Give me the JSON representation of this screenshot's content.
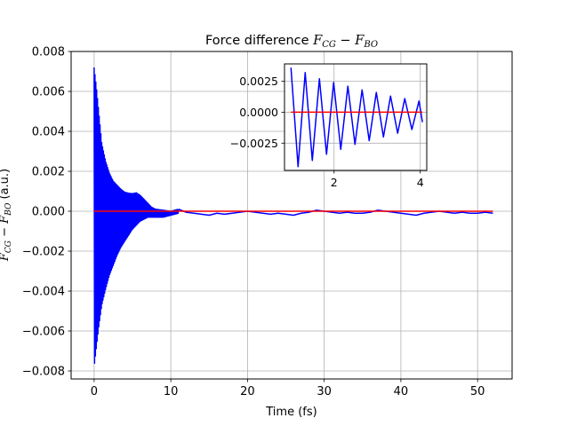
{
  "chart_data": [
    {
      "type": "line",
      "title": "Force difference",
      "title_math": {
        "left_base": "F",
        "left_sub": "CG",
        "op": "−",
        "right_base": "F",
        "right_sub": "BO"
      },
      "xlabel": "Time (fs)",
      "ylabel_math": {
        "left_base": "F",
        "left_sub": "CG",
        "op": "−",
        "right_base": "F",
        "right_sub": "BO",
        "suffix": " (a.u.)"
      },
      "xlim": [
        -3,
        54.5
      ],
      "ylim": [
        -0.0084,
        0.008
      ],
      "xticks": [
        0,
        10,
        20,
        30,
        40,
        50
      ],
      "yticks": [
        -0.008,
        -0.006,
        -0.004,
        -0.002,
        0.0,
        0.002,
        0.004,
        0.006,
        0.008
      ],
      "xtick_labels": [
        "0",
        "10",
        "20",
        "30",
        "40",
        "50"
      ],
      "ytick_labels": [
        "−0.008",
        "−0.006",
        "−0.004",
        "−0.002",
        "0.000",
        "0.002",
        "0.004",
        "0.006",
        "0.008"
      ],
      "grid": true,
      "series": [
        {
          "color": "#0000ff",
          "style": "oscillation",
          "envelope_x": [
            0.0,
            0.3,
            0.6,
            1.0,
            1.5,
            2.0,
            2.5,
            3.0,
            3.5,
            4.0,
            4.5,
            5.0,
            5.5,
            6.0,
            6.5,
            7.0,
            7.5,
            8.0,
            9.0,
            10.0,
            11.0
          ],
          "envelope_upper": [
            0.0072,
            0.0062,
            0.005,
            0.0034,
            0.0025,
            0.0019,
            0.0015,
            0.0013,
            0.0011,
            0.00095,
            0.0009,
            0.00088,
            0.00092,
            0.0008,
            0.0006,
            0.0004,
            0.0002,
            0.0001,
            5e-05,
            0.0,
            0.0001
          ],
          "envelope_lower": [
            -0.0078,
            -0.0068,
            -0.0058,
            -0.0047,
            -0.0039,
            -0.0032,
            -0.0027,
            -0.0022,
            -0.0018,
            -0.0015,
            -0.0012,
            -0.0009,
            -0.0007,
            -0.0005,
            -0.0004,
            -0.0003,
            -0.0003,
            -0.0003,
            -0.0003,
            -0.0002,
            -0.0001
          ]
        },
        {
          "color": "#0000ff",
          "style": "line",
          "x": [
            11,
            12,
            13,
            14,
            15,
            16,
            17,
            18,
            19,
            20,
            21,
            22,
            23,
            24,
            25,
            26,
            27,
            28,
            29,
            30,
            31,
            32,
            33,
            34,
            35,
            36,
            37,
            38,
            39,
            40,
            41,
            42,
            43,
            44,
            45,
            46,
            47,
            48,
            49,
            50,
            51,
            52
          ],
          "y": [
            0.0001,
            -5e-05,
            -0.0001,
            -0.00015,
            -0.0002,
            -0.0001,
            -0.00015,
            -0.0001,
            -5e-05,
            0.0,
            -5e-05,
            -0.0001,
            -0.00015,
            -0.0001,
            -0.00015,
            -0.0002,
            -0.0001,
            -5e-05,
            5e-05,
            0.0,
            -5e-05,
            -0.0001,
            -5e-05,
            -0.0001,
            -0.0001,
            -5e-05,
            5e-05,
            0.0,
            -5e-05,
            -0.0001,
            -0.00015,
            -0.0002,
            -0.0001,
            -5e-05,
            0.0,
            -5e-05,
            -0.0001,
            -5e-05,
            -0.0001,
            -0.0001,
            -5e-05,
            -0.0001
          ]
        },
        {
          "color": "#ff0000",
          "style": "line",
          "x": [
            0,
            52
          ],
          "y": [
            0.0,
            0.0
          ]
        }
      ]
    },
    {
      "type": "line",
      "role": "inset",
      "xlim": [
        0.85,
        4.15
      ],
      "ylim": [
        -0.0047,
        0.0039
      ],
      "xticks": [
        2,
        4
      ],
      "yticks": [
        -0.0025,
        0.0,
        0.0025
      ],
      "xtick_labels": [
        "2",
        "4"
      ],
      "ytick_labels": [
        "−0.0025",
        "0.0000",
        "0.0025"
      ],
      "grid": true,
      "series": [
        {
          "color": "#0000ff",
          "style": "line",
          "x": [
            1.0,
            1.165,
            1.33,
            1.495,
            1.66,
            1.825,
            1.99,
            2.155,
            2.32,
            2.485,
            2.65,
            2.815,
            2.98,
            3.145,
            3.31,
            3.475,
            3.64,
            3.805,
            3.97,
            4.05
          ],
          "y": [
            0.0036,
            -0.0044,
            0.0032,
            -0.0039,
            0.0027,
            -0.0034,
            0.0024,
            -0.003,
            0.0021,
            -0.0026,
            0.0018,
            -0.0023,
            0.0016,
            -0.002,
            0.0013,
            -0.0017,
            0.0011,
            -0.0014,
            0.0009,
            -0.0008
          ]
        },
        {
          "color": "#ff0000",
          "style": "line",
          "x": [
            1.0,
            4.05
          ],
          "y": [
            0.0,
            0.0
          ]
        }
      ]
    }
  ]
}
